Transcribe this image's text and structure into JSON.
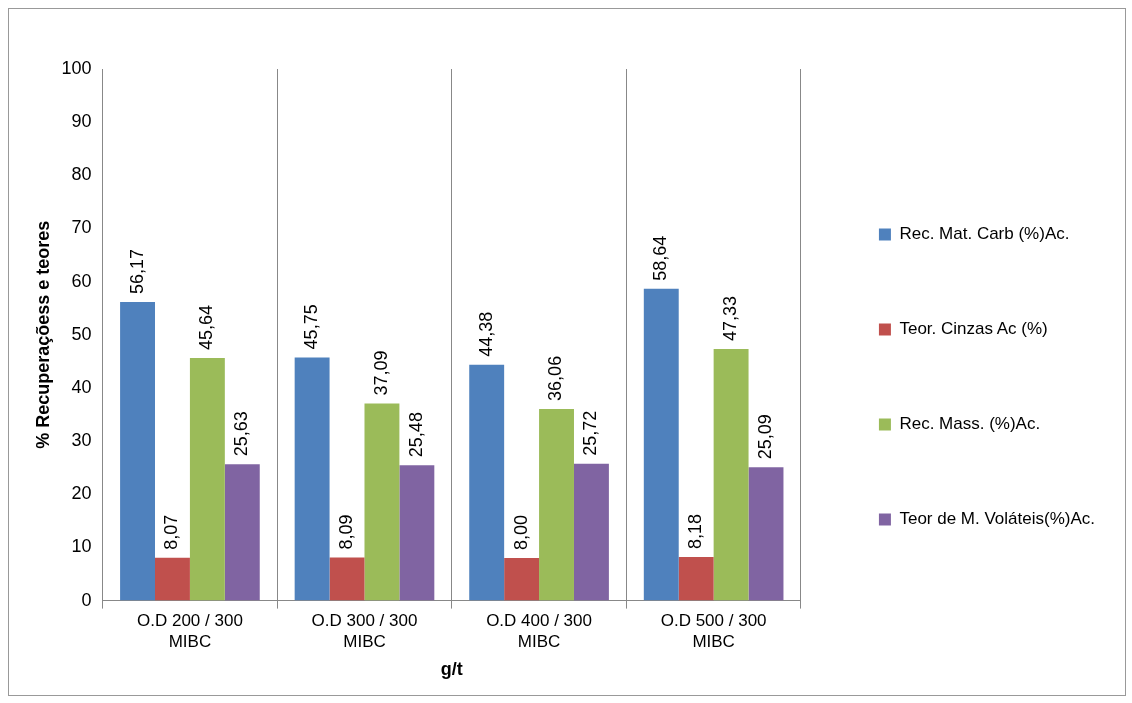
{
  "chart_data": {
    "type": "bar",
    "xlabel": "g/t",
    "ylabel": "% Recuperaçõess e teores",
    "categories": [
      "O.D 200 / 300 MIBC",
      "O.D 300 / 300 MIBC",
      "O.D 400 / 300 MIBC",
      "O.D 500 / 300 MIBC"
    ],
    "series": [
      {
        "name": "Rec. Mat. Carb (%)Ac.",
        "color": "#4f81bd",
        "values": [
          56.17,
          45.75,
          44.38,
          58.64
        ],
        "value_labels": [
          "56,17",
          "45,75",
          "44,38",
          "58,64"
        ]
      },
      {
        "name": "Teor. Cinzas Ac (%)",
        "color": "#c0504d",
        "values": [
          8.07,
          8.09,
          8.0,
          8.18
        ],
        "value_labels": [
          "8,07",
          "8,09",
          "8,00",
          "8,18"
        ]
      },
      {
        "name": "Rec. Mass. (%)Ac.",
        "color": "#9bbb59",
        "values": [
          45.64,
          37.09,
          36.06,
          47.33
        ],
        "value_labels": [
          "45,64",
          "37,09",
          "36,06",
          "47,33"
        ]
      },
      {
        "name": "Teor de M. Voláteis(%)Ac.",
        "color": "#8064a2",
        "values": [
          25.63,
          25.48,
          25.72,
          25.09
        ],
        "value_labels": [
          "25,63",
          "25,48",
          "25,72",
          "25,09"
        ]
      }
    ],
    "ylim": [
      0,
      100
    ],
    "yticks": [
      0,
      10,
      20,
      30,
      40,
      50,
      60,
      70,
      80,
      90,
      100
    ],
    "grid": "x",
    "legend": "right"
  }
}
